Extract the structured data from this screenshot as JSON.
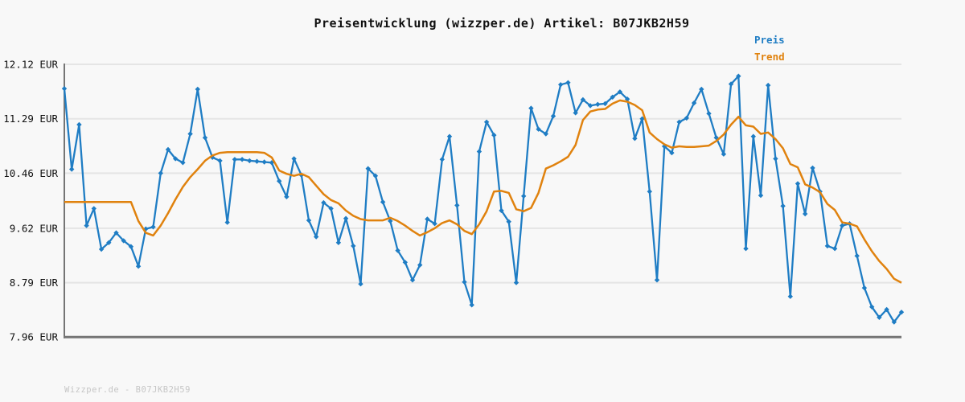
{
  "title": "Preisentwicklung (wizzper.de) Artikel: B07JKB2H59",
  "legend": {
    "preis": "Preis",
    "trend": "Trend"
  },
  "watermark": "Wizzper.de - B07JKB2H59",
  "colors": {
    "price": "#1f7dc4",
    "trend": "#e0820e",
    "grid": "#e5e5e5",
    "axis": "#757575",
    "text": "#111111",
    "watermark": "#c6c6c6",
    "background": "#f8f8f8"
  },
  "y_axis": {
    "tick_labels": [
      "12.12 EUR",
      "11.29 EUR",
      "10.46 EUR",
      "9.62 EUR",
      "8.79 EUR",
      "7.96 EUR"
    ],
    "tick_values": [
      12.12,
      11.29,
      10.46,
      9.62,
      8.79,
      7.96
    ]
  },
  "chart_data": {
    "type": "line",
    "title": "Preisentwicklung (wizzper.de) Artikel: B07JKB2H59",
    "xlabel": "",
    "ylabel": "",
    "x_tick_labels_visible": false,
    "grid": "horizontal",
    "legend_position": "top-right",
    "ylim": [
      7.96,
      12.12
    ],
    "yticks": [
      12.12,
      11.29,
      10.46,
      9.62,
      8.79,
      7.96
    ],
    "currency": "EUR",
    "series": [
      {
        "name": "Preis",
        "color": "#1f7dc4",
        "marker": "diamond",
        "values": [
          11.75,
          10.52,
          11.2,
          9.66,
          9.92,
          9.3,
          9.4,
          9.55,
          9.43,
          9.34,
          9.04,
          9.61,
          9.64,
          10.46,
          10.82,
          10.68,
          10.62,
          11.06,
          11.74,
          11.0,
          10.7,
          10.65,
          9.71,
          10.67,
          10.67,
          10.65,
          10.64,
          10.63,
          10.62,
          10.34,
          10.1,
          10.68,
          10.43,
          9.74,
          9.49,
          10.01,
          9.92,
          9.4,
          9.77,
          9.35,
          8.77,
          10.53,
          10.42,
          10.02,
          9.73,
          9.28,
          9.1,
          8.83,
          9.06,
          9.76,
          9.69,
          10.67,
          11.02,
          9.97,
          8.8,
          8.45,
          10.79,
          11.24,
          11.04,
          9.89,
          9.72,
          8.79,
          10.11,
          11.45,
          11.13,
          11.06,
          11.33,
          11.81,
          11.84,
          11.38,
          11.58,
          11.49,
          11.51,
          11.52,
          11.62,
          11.7,
          11.59,
          10.99,
          11.29,
          10.18,
          8.83,
          10.87,
          10.77,
          11.24,
          11.3,
          11.53,
          11.74,
          11.37,
          11.0,
          10.75,
          11.82,
          11.94,
          9.31,
          11.02,
          10.12,
          11.8,
          10.68,
          9.96,
          8.58,
          10.3,
          9.84,
          10.54,
          10.18,
          9.35,
          9.31,
          9.66,
          9.69,
          9.2,
          8.71,
          8.42,
          8.26,
          8.38,
          8.19,
          8.34
        ]
      },
      {
        "name": "Trend",
        "color": "#e0820e",
        "marker": "none",
        "values": [
          10.02,
          10.02,
          10.02,
          10.02,
          10.02,
          10.02,
          10.02,
          10.02,
          10.02,
          10.02,
          9.73,
          9.55,
          9.51,
          9.66,
          9.85,
          10.06,
          10.25,
          10.4,
          10.52,
          10.65,
          10.73,
          10.77,
          10.78,
          10.78,
          10.78,
          10.78,
          10.78,
          10.77,
          10.7,
          10.5,
          10.45,
          10.42,
          10.45,
          10.4,
          10.27,
          10.14,
          10.05,
          10.0,
          9.89,
          9.81,
          9.76,
          9.74,
          9.74,
          9.74,
          9.78,
          9.73,
          9.66,
          9.58,
          9.51,
          9.56,
          9.62,
          9.7,
          9.74,
          9.68,
          9.58,
          9.53,
          9.68,
          9.88,
          10.18,
          10.19,
          10.16,
          9.91,
          9.88,
          9.93,
          10.16,
          10.53,
          10.58,
          10.64,
          10.71,
          10.89,
          11.27,
          11.4,
          11.43,
          11.44,
          11.52,
          11.57,
          11.55,
          11.5,
          11.42,
          11.08,
          10.98,
          10.9,
          10.85,
          10.87,
          10.86,
          10.86,
          10.87,
          10.88,
          10.95,
          11.05,
          11.2,
          11.32,
          11.19,
          11.17,
          11.06,
          11.08,
          10.98,
          10.84,
          10.6,
          10.55,
          10.29,
          10.24,
          10.17,
          9.99,
          9.9,
          9.71,
          9.69,
          9.65,
          9.45,
          9.27,
          9.12,
          9.0,
          8.85,
          8.79
        ]
      }
    ]
  }
}
